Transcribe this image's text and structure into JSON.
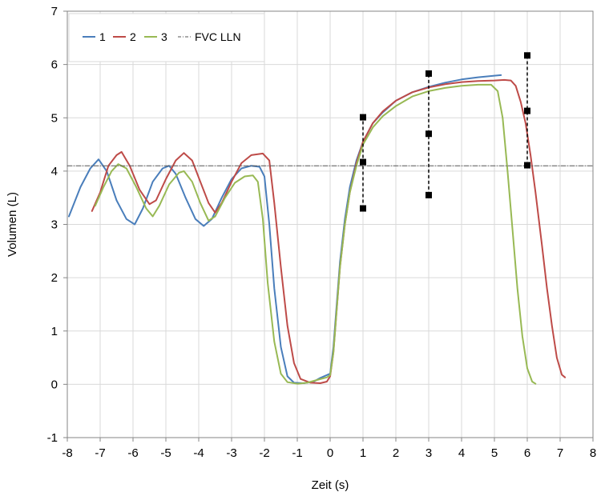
{
  "chart_data": {
    "type": "line",
    "title": "",
    "xlabel": "Zeit (s)",
    "ylabel": "Volumen (L)",
    "xlim": [
      -8,
      8
    ],
    "ylim": [
      -1,
      7
    ],
    "x_ticks": [
      "-8",
      "-7",
      "-6",
      "-5",
      "-4",
      "-3",
      "-2",
      "-1",
      "0",
      "1",
      "2",
      "3",
      "4",
      "5",
      "6",
      "7",
      "8"
    ],
    "y_ticks": [
      "-1",
      "0",
      "1",
      "2",
      "3",
      "4",
      "5",
      "6",
      "7"
    ],
    "grid": true,
    "legend_position": "top-left",
    "series": [
      {
        "name": "1",
        "color": "#4a7ebb",
        "points": [
          [
            -7.95,
            3.15
          ],
          [
            -7.6,
            3.7
          ],
          [
            -7.3,
            4.05
          ],
          [
            -7.05,
            4.22
          ],
          [
            -6.8,
            4.0
          ],
          [
            -6.5,
            3.45
          ],
          [
            -6.2,
            3.1
          ],
          [
            -5.95,
            3.0
          ],
          [
            -5.7,
            3.3
          ],
          [
            -5.4,
            3.8
          ],
          [
            -5.1,
            4.05
          ],
          [
            -4.9,
            4.1
          ],
          [
            -4.7,
            3.95
          ],
          [
            -4.4,
            3.5
          ],
          [
            -4.1,
            3.1
          ],
          [
            -3.85,
            2.97
          ],
          [
            -3.6,
            3.1
          ],
          [
            -3.3,
            3.5
          ],
          [
            -3.0,
            3.85
          ],
          [
            -2.7,
            4.05
          ],
          [
            -2.4,
            4.1
          ],
          [
            -2.15,
            4.08
          ],
          [
            -2.0,
            3.9
          ],
          [
            -1.85,
            3.0
          ],
          [
            -1.7,
            1.8
          ],
          [
            -1.5,
            0.7
          ],
          [
            -1.3,
            0.15
          ],
          [
            -1.1,
            0.03
          ],
          [
            -0.8,
            0.02
          ],
          [
            -0.5,
            0.05
          ],
          [
            -0.3,
            0.12
          ],
          [
            0.0,
            0.2
          ],
          [
            0.1,
            0.7
          ],
          [
            0.2,
            1.5
          ],
          [
            0.3,
            2.3
          ],
          [
            0.45,
            3.1
          ],
          [
            0.6,
            3.7
          ],
          [
            0.8,
            4.2
          ],
          [
            1.0,
            4.55
          ],
          [
            1.3,
            4.9
          ],
          [
            1.6,
            5.1
          ],
          [
            2.0,
            5.32
          ],
          [
            2.5,
            5.48
          ],
          [
            3.0,
            5.58
          ],
          [
            3.5,
            5.66
          ],
          [
            4.0,
            5.72
          ],
          [
            4.5,
            5.76
          ],
          [
            5.0,
            5.79
          ],
          [
            5.2,
            5.8
          ]
        ]
      },
      {
        "name": "2",
        "color": "#be4b48",
        "points": [
          [
            -7.25,
            3.25
          ],
          [
            -7.0,
            3.6
          ],
          [
            -6.75,
            4.1
          ],
          [
            -6.5,
            4.3
          ],
          [
            -6.35,
            4.36
          ],
          [
            -6.1,
            4.1
          ],
          [
            -5.8,
            3.65
          ],
          [
            -5.5,
            3.38
          ],
          [
            -5.3,
            3.45
          ],
          [
            -5.0,
            3.85
          ],
          [
            -4.7,
            4.2
          ],
          [
            -4.45,
            4.34
          ],
          [
            -4.2,
            4.2
          ],
          [
            -3.95,
            3.8
          ],
          [
            -3.7,
            3.4
          ],
          [
            -3.5,
            3.22
          ],
          [
            -3.3,
            3.4
          ],
          [
            -3.0,
            3.8
          ],
          [
            -2.7,
            4.15
          ],
          [
            -2.4,
            4.3
          ],
          [
            -2.05,
            4.33
          ],
          [
            -1.85,
            4.2
          ],
          [
            -1.7,
            3.4
          ],
          [
            -1.5,
            2.2
          ],
          [
            -1.3,
            1.1
          ],
          [
            -1.1,
            0.4
          ],
          [
            -0.9,
            0.1
          ],
          [
            -0.6,
            0.03
          ],
          [
            -0.3,
            0.02
          ],
          [
            -0.1,
            0.05
          ],
          [
            0.0,
            0.15
          ],
          [
            0.1,
            0.6
          ],
          [
            0.2,
            1.4
          ],
          [
            0.3,
            2.2
          ],
          [
            0.45,
            3.0
          ],
          [
            0.6,
            3.6
          ],
          [
            0.8,
            4.15
          ],
          [
            1.0,
            4.55
          ],
          [
            1.3,
            4.9
          ],
          [
            1.6,
            5.12
          ],
          [
            2.0,
            5.32
          ],
          [
            2.5,
            5.48
          ],
          [
            3.0,
            5.57
          ],
          [
            3.5,
            5.63
          ],
          [
            4.0,
            5.67
          ],
          [
            4.5,
            5.69
          ],
          [
            5.0,
            5.7
          ],
          [
            5.3,
            5.71
          ],
          [
            5.5,
            5.7
          ],
          [
            5.65,
            5.6
          ],
          [
            5.8,
            5.3
          ],
          [
            5.95,
            4.9
          ],
          [
            6.1,
            4.3
          ],
          [
            6.25,
            3.6
          ],
          [
            6.45,
            2.6
          ],
          [
            6.6,
            1.8
          ],
          [
            6.75,
            1.1
          ],
          [
            6.9,
            0.5
          ],
          [
            7.05,
            0.18
          ],
          [
            7.15,
            0.13
          ]
        ]
      },
      {
        "name": "3",
        "color": "#98b954",
        "points": [
          [
            -7.15,
            3.35
          ],
          [
            -6.9,
            3.7
          ],
          [
            -6.65,
            4.0
          ],
          [
            -6.45,
            4.13
          ],
          [
            -6.2,
            4.05
          ],
          [
            -5.9,
            3.7
          ],
          [
            -5.6,
            3.3
          ],
          [
            -5.4,
            3.15
          ],
          [
            -5.2,
            3.35
          ],
          [
            -4.9,
            3.75
          ],
          [
            -4.6,
            3.97
          ],
          [
            -4.45,
            4.0
          ],
          [
            -4.2,
            3.8
          ],
          [
            -3.95,
            3.4
          ],
          [
            -3.7,
            3.07
          ],
          [
            -3.5,
            3.15
          ],
          [
            -3.2,
            3.5
          ],
          [
            -2.9,
            3.78
          ],
          [
            -2.6,
            3.9
          ],
          [
            -2.35,
            3.92
          ],
          [
            -2.2,
            3.8
          ],
          [
            -2.05,
            3.1
          ],
          [
            -1.9,
            1.9
          ],
          [
            -1.7,
            0.8
          ],
          [
            -1.5,
            0.2
          ],
          [
            -1.3,
            0.04
          ],
          [
            -1.0,
            0.01
          ],
          [
            -0.7,
            0.03
          ],
          [
            -0.4,
            0.08
          ],
          [
            -0.1,
            0.13
          ],
          [
            0.0,
            0.17
          ],
          [
            0.1,
            0.6
          ],
          [
            0.2,
            1.4
          ],
          [
            0.3,
            2.2
          ],
          [
            0.45,
            3.0
          ],
          [
            0.6,
            3.6
          ],
          [
            0.8,
            4.1
          ],
          [
            1.0,
            4.5
          ],
          [
            1.3,
            4.82
          ],
          [
            1.6,
            5.03
          ],
          [
            2.0,
            5.22
          ],
          [
            2.5,
            5.4
          ],
          [
            3.0,
            5.5
          ],
          [
            3.5,
            5.56
          ],
          [
            4.0,
            5.6
          ],
          [
            4.5,
            5.62
          ],
          [
            4.9,
            5.62
          ],
          [
            5.1,
            5.5
          ],
          [
            5.25,
            5.0
          ],
          [
            5.4,
            4.0
          ],
          [
            5.55,
            2.9
          ],
          [
            5.7,
            1.8
          ],
          [
            5.85,
            0.9
          ],
          [
            6.0,
            0.3
          ],
          [
            6.15,
            0.05
          ],
          [
            6.25,
            0.01
          ]
        ]
      },
      {
        "name": "FVC LLN",
        "color": "#555555",
        "style": "dash-dot",
        "points": [
          [
            -8,
            4.1
          ],
          [
            8,
            4.1
          ]
        ]
      }
    ],
    "reference_bars": [
      {
        "x": 1,
        "values": [
          3.3,
          4.17,
          5.01
        ]
      },
      {
        "x": 3,
        "values": [
          3.55,
          4.7,
          5.83
        ]
      },
      {
        "x": 6,
        "values": [
          4.11,
          5.13,
          6.17
        ]
      }
    ]
  }
}
